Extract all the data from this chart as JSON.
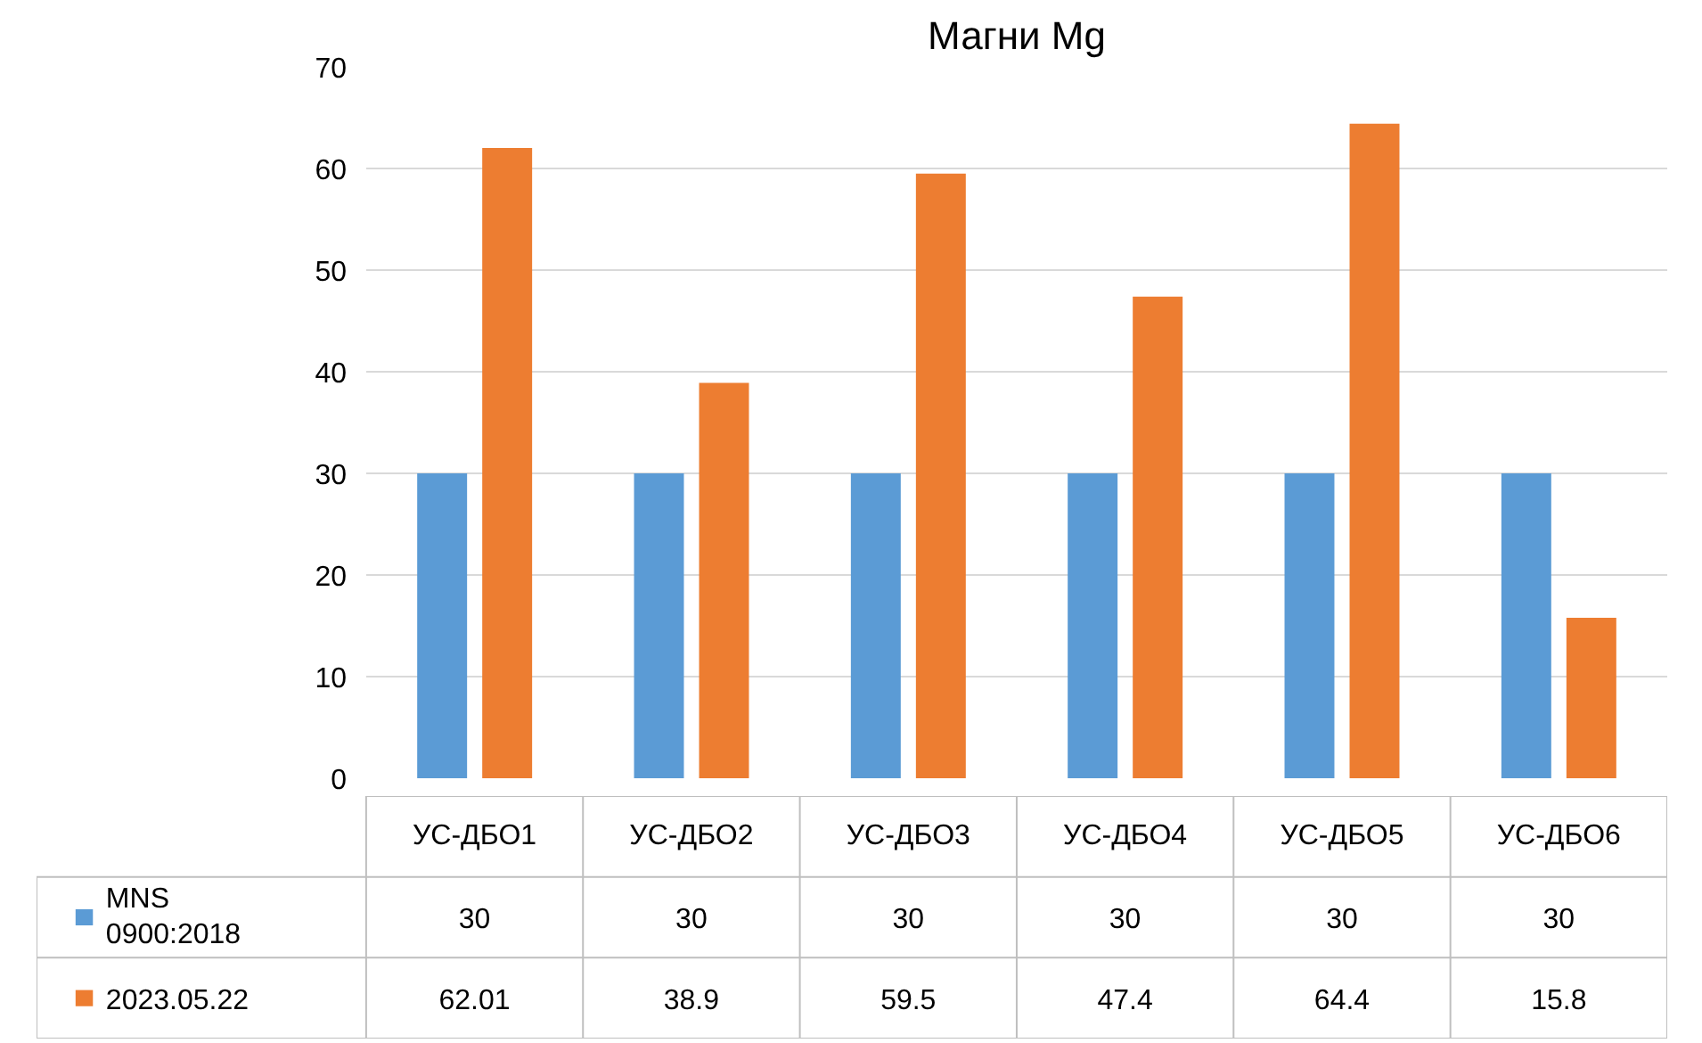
{
  "chart_data": {
    "type": "bar",
    "title": "Магни Mg",
    "categories": [
      "УС-ДБО1",
      "УС-ДБО2",
      "УС-ДБО3",
      "УС-ДБО4",
      "УС-ДБО5",
      "УС-ДБО6"
    ],
    "series": [
      {
        "name": "MNS 0900:2018",
        "color": "#5b9bd5",
        "values": [
          30,
          30,
          30,
          30,
          30,
          30
        ]
      },
      {
        "name": "2023.05.22",
        "color": "#ed7d31",
        "values": [
          62.01,
          38.9,
          59.5,
          47.4,
          64.4,
          15.8
        ]
      }
    ],
    "ylim": [
      0,
      70
    ],
    "yticks": [
      0,
      10,
      20,
      30,
      40,
      50,
      60,
      70
    ],
    "grid": "y",
    "data_labels": true,
    "legend": "bottom left"
  }
}
